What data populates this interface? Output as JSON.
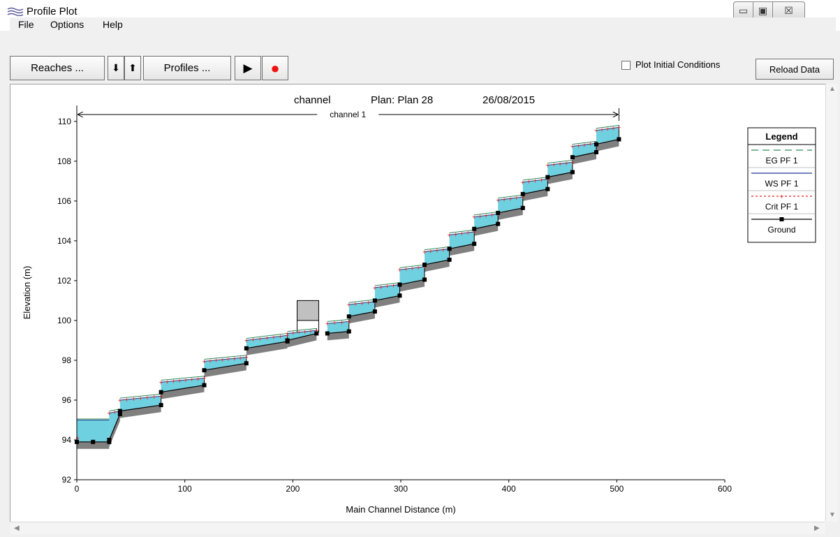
{
  "window": {
    "title": "Profile Plot",
    "min_glyph": "▭",
    "max_glyph": "▣",
    "close_glyph": "☒"
  },
  "menu": [
    "File",
    "Options",
    "Help"
  ],
  "toolbar": {
    "reaches_label": "Reaches ...",
    "down_glyph": "⬇",
    "up_glyph": "⬆",
    "profiles_label": "Profiles ...",
    "play_glyph": "▶",
    "record_glyph": "●",
    "plot_initial_label": "Plot Initial Conditions",
    "plot_initial_checked": false,
    "reload_label": "Reload Data"
  },
  "plot_header": {
    "project": "channel",
    "plan": "Plan: Plan 28",
    "date": "26/08/2015",
    "reach": "channel 1"
  },
  "colors": {
    "water": "#6fd0e0",
    "ground": "#808080",
    "eg": "#2e8b57",
    "ws": "#1f3b99",
    "crit": "#e02020",
    "bridge": "#c0c0c0"
  },
  "chart_data": {
    "type": "line",
    "title": "",
    "xlabel": "Main Channel Distance (m)",
    "ylabel": "Elevation (m)",
    "xlim": [
      0,
      600
    ],
    "ylim": [
      92,
      110.8
    ],
    "x_ticks": [
      0,
      100,
      200,
      300,
      400,
      500,
      600
    ],
    "y_ticks": [
      92,
      94,
      96,
      98,
      100,
      102,
      104,
      106,
      108,
      110
    ],
    "reach_extent": [
      0,
      502
    ],
    "legend": {
      "title": "Legend",
      "placement": "right",
      "entries": [
        "EG  PF 1",
        "WS  PF 1",
        "Crit  PF 1",
        "Ground"
      ]
    },
    "pool": {
      "x": [
        0,
        30
      ],
      "ground": 93.9,
      "water": 95.0,
      "eg": 95.05,
      "crit": 94.1
    },
    "steps": [
      [
        30,
        40,
        94.0,
        95.3,
        95.35,
        95.45
      ],
      [
        40,
        78,
        95.45,
        95.75,
        96.0,
        96.2
      ],
      [
        78,
        118,
        96.4,
        96.75,
        96.9,
        97.1
      ],
      [
        118,
        157,
        97.5,
        97.85,
        97.95,
        98.15
      ],
      [
        157,
        195,
        98.6,
        98.95,
        99.0,
        99.25
      ],
      [
        195,
        222,
        99.0,
        99.35,
        99.35,
        99.5
      ],
      [
        232,
        252,
        99.35,
        99.45,
        99.85,
        99.95
      ],
      [
        252,
        276,
        100.2,
        100.45,
        100.8,
        100.95
      ],
      [
        276,
        299,
        101.0,
        101.25,
        101.65,
        101.8
      ],
      [
        299,
        322,
        101.8,
        102.05,
        102.55,
        102.7
      ],
      [
        322,
        345,
        102.8,
        103.05,
        103.45,
        103.6
      ],
      [
        345,
        368,
        103.6,
        103.85,
        104.3,
        104.45
      ],
      [
        368,
        390,
        104.6,
        104.85,
        105.2,
        105.35
      ],
      [
        390,
        413,
        105.4,
        105.65,
        106.05,
        106.2
      ],
      [
        413,
        436,
        106.35,
        106.6,
        106.95,
        107.1
      ],
      [
        436,
        459,
        107.2,
        107.45,
        107.8,
        107.95
      ],
      [
        459,
        481,
        108.2,
        108.45,
        108.75,
        108.9
      ],
      [
        481,
        502,
        108.85,
        109.1,
        109.55,
        109.7
      ]
    ],
    "bridge": {
      "x": [
        204,
        224
      ],
      "low_chord": 100.0,
      "high_chord": 101.0
    }
  }
}
